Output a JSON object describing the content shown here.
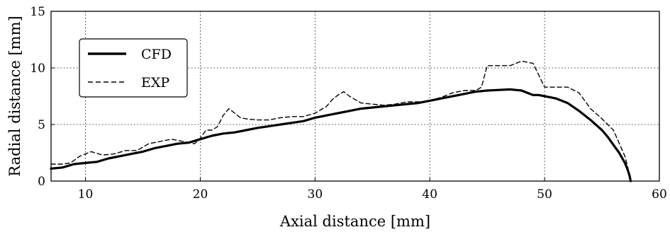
{
  "chart_data": {
    "type": "line",
    "xlabel": "Axial distance [mm]",
    "ylabel": "Radial distance [mm]",
    "xlim": [
      7,
      60
    ],
    "ylim": [
      0,
      15
    ],
    "xticks": [
      10,
      20,
      30,
      40,
      50,
      60
    ],
    "yticks": [
      0,
      5,
      10,
      15
    ],
    "grid": "dotted",
    "legend_position": "upper-left",
    "series": [
      {
        "name": "CFD",
        "style": "solid-thick",
        "color": "#000000",
        "x": [
          7,
          8,
          9,
          10,
          11,
          12,
          13,
          14,
          15,
          16,
          17,
          18,
          19,
          20,
          21,
          22,
          23,
          24,
          25,
          26,
          27,
          28,
          29,
          30,
          31,
          32,
          33,
          34,
          35,
          36,
          37,
          38,
          39,
          40,
          41,
          42,
          43,
          44,
          45,
          46,
          47,
          47.5,
          48,
          48.5,
          49,
          49.5,
          50,
          51,
          52,
          53,
          54,
          55,
          55.5,
          56,
          56.5,
          57,
          57.2,
          57.4,
          57.5
        ],
        "y": [
          1.1,
          1.2,
          1.5,
          1.6,
          1.7,
          2.0,
          2.2,
          2.4,
          2.6,
          2.9,
          3.1,
          3.3,
          3.4,
          3.7,
          4.0,
          4.2,
          4.3,
          4.5,
          4.7,
          4.85,
          5.0,
          5.15,
          5.3,
          5.6,
          5.8,
          6.0,
          6.2,
          6.4,
          6.5,
          6.6,
          6.7,
          6.8,
          6.9,
          7.1,
          7.3,
          7.5,
          7.7,
          7.9,
          8.0,
          8.05,
          8.1,
          8.05,
          8.0,
          7.8,
          7.6,
          7.6,
          7.5,
          7.3,
          6.9,
          6.2,
          5.4,
          4.5,
          3.9,
          3.2,
          2.5,
          1.6,
          1.1,
          0.5,
          0
        ]
      },
      {
        "name": "EXP",
        "style": "dashed",
        "color": "#000000",
        "x": [
          7,
          8,
          8.7,
          9.5,
          10.5,
          11.5,
          12.5,
          13.5,
          14.5,
          15.5,
          16.5,
          17.5,
          18.5,
          19.5,
          20,
          20.5,
          21,
          21.5,
          22,
          22.5,
          23,
          23.5,
          24,
          25,
          26,
          27,
          28,
          29,
          30,
          31,
          31.5,
          32,
          32.5,
          33,
          33.5,
          34,
          35,
          36,
          37,
          38,
          39,
          40,
          41,
          42,
          43,
          44,
          44.5,
          45,
          46,
          47,
          48,
          49,
          50,
          51,
          52,
          53,
          54,
          55,
          56,
          57,
          57.3,
          57.5
        ],
        "y": [
          1.5,
          1.5,
          1.6,
          2.2,
          2.6,
          2.3,
          2.4,
          2.7,
          2.7,
          3.3,
          3.5,
          3.7,
          3.5,
          3.3,
          3.8,
          4.5,
          4.5,
          4.8,
          5.8,
          6.4,
          6.0,
          5.6,
          5.5,
          5.4,
          5.4,
          5.6,
          5.7,
          5.7,
          6.0,
          6.6,
          7.2,
          7.6,
          7.9,
          7.5,
          7.2,
          6.9,
          6.8,
          6.7,
          6.8,
          7.0,
          7.0,
          7.1,
          7.4,
          7.8,
          8.0,
          8.0,
          8.3,
          10.2,
          10.2,
          10.2,
          10.6,
          10.4,
          8.3,
          8.3,
          8.3,
          7.8,
          6.4,
          5.5,
          4.5,
          2.2,
          1.0,
          0
        ]
      }
    ]
  }
}
